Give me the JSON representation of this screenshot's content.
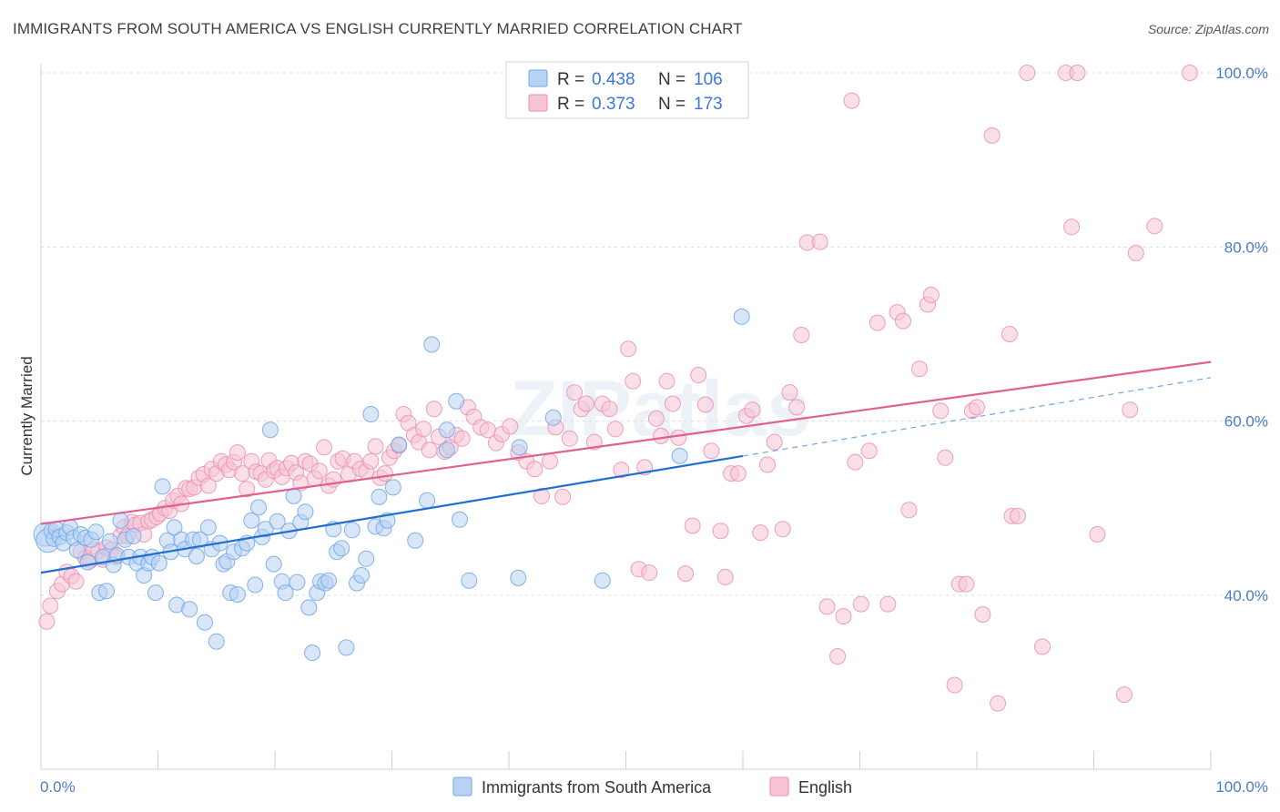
{
  "title": "IMMIGRANTS FROM SOUTH AMERICA VS ENGLISH CURRENTLY MARRIED CORRELATION CHART",
  "source": "Source: ZipAtlas.com",
  "watermark": "ZIPatlas",
  "colors": {
    "blue": "#6fa6e6",
    "blue_fill": "#b8d2f3",
    "blue_line": "#1f6fd0",
    "pink": "#ea8fb0",
    "pink_fill": "#f6c4d5",
    "pink_line": "#e0608e",
    "tick": "#4a7cc9"
  },
  "legend": {
    "rows": [
      {
        "r_label": "R = ",
        "r_value": "0.438",
        "n_label": "N = ",
        "n_value": "106"
      },
      {
        "r_label": "R = ",
        "r_value": "0.373",
        "n_label": "N = ",
        "n_value": "173"
      }
    ]
  },
  "chart_data": {
    "type": "scatter",
    "title": "IMMIGRANTS FROM SOUTH AMERICA VS ENGLISH CURRENTLY MARRIED CORRELATION CHART",
    "xlabel": "",
    "ylabel": "Currently Married",
    "xlim": [
      0,
      100
    ],
    "ylim": [
      20,
      102
    ],
    "x_tick_labels": [
      "0.0%",
      "100.0%"
    ],
    "y_ticks": [
      40,
      60,
      80,
      100
    ],
    "y_tick_labels": [
      "40.0%",
      "60.0%",
      "80.0%",
      "100.0%"
    ],
    "grid": true,
    "legend_position": "top-center",
    "series": [
      {
        "name": "Immigrants from South America",
        "r": 0.438,
        "n": 106,
        "trend": {
          "x0": 0,
          "y0": 42.6,
          "x1": 60,
          "y1": 56.0,
          "dash_to_x": 100,
          "dash_to_y": 65.0
        },
        "points": [
          [
            0.4,
            47
          ],
          [
            0.6,
            46.3
          ],
          [
            0.9,
            47.4
          ],
          [
            1.1,
            46.5
          ],
          [
            1.3,
            47.6
          ],
          [
            1.6,
            46.7
          ],
          [
            1.9,
            46.0
          ],
          [
            2.2,
            47.2
          ],
          [
            2.5,
            47.8
          ],
          [
            2.8,
            46.6
          ],
          [
            3.1,
            45.2
          ],
          [
            3.4,
            47.0
          ],
          [
            3.8,
            46.6
          ],
          [
            4.0,
            43.8
          ],
          [
            4.3,
            46.4
          ],
          [
            4.7,
            47.3
          ],
          [
            5.0,
            40.3
          ],
          [
            5.3,
            44.4
          ],
          [
            5.6,
            40.5
          ],
          [
            5.9,
            46.2
          ],
          [
            6.2,
            43.5
          ],
          [
            6.5,
            44.6
          ],
          [
            6.8,
            48.6
          ],
          [
            7.2,
            46.4
          ],
          [
            7.5,
            44.4
          ],
          [
            7.9,
            46.8
          ],
          [
            8.2,
            43.7
          ],
          [
            8.5,
            44.4
          ],
          [
            8.8,
            42.3
          ],
          [
            9.2,
            43.7
          ],
          [
            9.5,
            44.4
          ],
          [
            9.8,
            40.3
          ],
          [
            10.1,
            43.7
          ],
          [
            10.4,
            52.5
          ],
          [
            10.8,
            46.3
          ],
          [
            11.1,
            45.0
          ],
          [
            11.4,
            47.8
          ],
          [
            11.6,
            38.9
          ],
          [
            12.0,
            46.4
          ],
          [
            12.3,
            45.3
          ],
          [
            12.7,
            38.4
          ],
          [
            13.0,
            46.4
          ],
          [
            13.3,
            44.5
          ],
          [
            13.6,
            46.4
          ],
          [
            14.0,
            36.9
          ],
          [
            14.3,
            47.8
          ],
          [
            14.6,
            45.3
          ],
          [
            15.0,
            34.7
          ],
          [
            15.3,
            46.0
          ],
          [
            15.6,
            43.6
          ],
          [
            15.9,
            43.9
          ],
          [
            16.2,
            40.3
          ],
          [
            16.5,
            45.0
          ],
          [
            16.8,
            40.1
          ],
          [
            17.2,
            45.4
          ],
          [
            17.6,
            46.0
          ],
          [
            18.0,
            48.6
          ],
          [
            18.3,
            41.2
          ],
          [
            18.6,
            50.1
          ],
          [
            18.9,
            46.7
          ],
          [
            19.2,
            47.6
          ],
          [
            19.6,
            59.0
          ],
          [
            19.9,
            43.6
          ],
          [
            20.2,
            48.5
          ],
          [
            20.6,
            41.6
          ],
          [
            20.9,
            40.3
          ],
          [
            21.2,
            47.4
          ],
          [
            21.6,
            51.4
          ],
          [
            21.9,
            41.5
          ],
          [
            22.2,
            48.4
          ],
          [
            22.6,
            49.6
          ],
          [
            22.9,
            38.6
          ],
          [
            23.2,
            33.4
          ],
          [
            23.6,
            40.3
          ],
          [
            23.9,
            41.6
          ],
          [
            24.3,
            41.4
          ],
          [
            24.6,
            41.7
          ],
          [
            25.0,
            47.6
          ],
          [
            25.3,
            45.0
          ],
          [
            25.7,
            45.4
          ],
          [
            26.1,
            34.0
          ],
          [
            26.6,
            47.5
          ],
          [
            27.0,
            41.4
          ],
          [
            27.4,
            42.3
          ],
          [
            27.8,
            44.2
          ],
          [
            28.2,
            60.8
          ],
          [
            28.6,
            47.9
          ],
          [
            28.9,
            51.3
          ],
          [
            29.3,
            47.7
          ],
          [
            29.6,
            48.6
          ],
          [
            30.1,
            52.4
          ],
          [
            30.6,
            57.3
          ],
          [
            32.0,
            46.3
          ],
          [
            33.0,
            50.9
          ],
          [
            34.7,
            56.7
          ],
          [
            34.7,
            59.0
          ],
          [
            33.4,
            68.8
          ],
          [
            35.5,
            62.3
          ],
          [
            35.8,
            48.7
          ],
          [
            36.6,
            41.7
          ],
          [
            40.8,
            42.0
          ],
          [
            40.9,
            57.0
          ],
          [
            43.8,
            60.4
          ],
          [
            48.0,
            41.7
          ],
          [
            54.6,
            56.0
          ],
          [
            59.9,
            72.0
          ]
        ]
      },
      {
        "name": "English",
        "r": 0.373,
        "n": 173,
        "trend": {
          "x0": 0,
          "y0": 48.2,
          "x1": 100,
          "y1": 66.8
        },
        "points": [
          [
            0.5,
            37.0
          ],
          [
            0.8,
            38.8
          ],
          [
            1.4,
            40.5
          ],
          [
            1.8,
            41.3
          ],
          [
            2.2,
            42.7
          ],
          [
            2.6,
            42.2
          ],
          [
            3.0,
            41.6
          ],
          [
            3.4,
            45.0
          ],
          [
            3.8,
            44.3
          ],
          [
            4.2,
            44.0
          ],
          [
            4.5,
            45.3
          ],
          [
            4.9,
            45.1
          ],
          [
            5.3,
            44.1
          ],
          [
            5.6,
            45.5
          ],
          [
            6.0,
            45.2
          ],
          [
            6.4,
            44.4
          ],
          [
            6.8,
            46.8
          ],
          [
            7.1,
            47.8
          ],
          [
            7.4,
            46.8
          ],
          [
            7.8,
            48.4
          ],
          [
            8.1,
            48.1
          ],
          [
            8.5,
            48.3
          ],
          [
            8.8,
            47.0
          ],
          [
            9.2,
            48.5
          ],
          [
            9.5,
            48.7
          ],
          [
            9.9,
            49.0
          ],
          [
            10.2,
            49.4
          ],
          [
            10.6,
            50.0
          ],
          [
            11.0,
            49.7
          ],
          [
            11.3,
            50.9
          ],
          [
            11.7,
            51.4
          ],
          [
            12.0,
            50.5
          ],
          [
            12.4,
            52.3
          ],
          [
            12.7,
            52.2
          ],
          [
            13.1,
            52.4
          ],
          [
            13.5,
            53.5
          ],
          [
            13.9,
            53.9
          ],
          [
            14.3,
            52.6
          ],
          [
            14.6,
            54.5
          ],
          [
            15.0,
            54.0
          ],
          [
            15.4,
            55.4
          ],
          [
            15.8,
            55.0
          ],
          [
            16.1,
            54.4
          ],
          [
            16.5,
            55.3
          ],
          [
            16.8,
            56.4
          ],
          [
            17.2,
            54.0
          ],
          [
            17.6,
            52.2
          ],
          [
            18.0,
            55.4
          ],
          [
            18.4,
            54.2
          ],
          [
            18.8,
            54.0
          ],
          [
            19.2,
            53.3
          ],
          [
            19.5,
            55.5
          ],
          [
            19.9,
            54.3
          ],
          [
            20.2,
            54.6
          ],
          [
            20.6,
            53.6
          ],
          [
            21.0,
            54.6
          ],
          [
            21.4,
            55.2
          ],
          [
            21.8,
            54.1
          ],
          [
            22.2,
            52.9
          ],
          [
            22.6,
            55.4
          ],
          [
            23.0,
            55.1
          ],
          [
            23.4,
            53.4
          ],
          [
            23.8,
            54.3
          ],
          [
            24.2,
            57.0
          ],
          [
            24.6,
            52.6
          ],
          [
            25.0,
            53.3
          ],
          [
            25.4,
            55.4
          ],
          [
            25.8,
            55.7
          ],
          [
            26.3,
            53.9
          ],
          [
            26.8,
            55.4
          ],
          [
            27.3,
            54.5
          ],
          [
            27.8,
            54.2
          ],
          [
            28.2,
            55.4
          ],
          [
            28.6,
            57.1
          ],
          [
            29.0,
            53.5
          ],
          [
            29.4,
            54.0
          ],
          [
            29.8,
            55.8
          ],
          [
            30.2,
            56.6
          ],
          [
            30.6,
            57.2
          ],
          [
            31.0,
            60.8
          ],
          [
            31.4,
            59.8
          ],
          [
            31.9,
            58.4
          ],
          [
            32.3,
            57.6
          ],
          [
            32.7,
            59.1
          ],
          [
            33.2,
            56.7
          ],
          [
            33.6,
            61.4
          ],
          [
            34.0,
            58.2
          ],
          [
            34.5,
            56.5
          ],
          [
            35.0,
            57.0
          ],
          [
            35.5,
            58.4
          ],
          [
            36.0,
            58.0
          ],
          [
            36.5,
            61.6
          ],
          [
            37.0,
            60.5
          ],
          [
            37.6,
            59.3
          ],
          [
            38.2,
            59.0
          ],
          [
            38.9,
            57.5
          ],
          [
            39.4,
            58.5
          ],
          [
            40.1,
            59.4
          ],
          [
            40.8,
            56.4
          ],
          [
            41.5,
            55.4
          ],
          [
            42.2,
            54.5
          ],
          [
            42.8,
            51.4
          ],
          [
            43.5,
            55.4
          ],
          [
            44.0,
            59.3
          ],
          [
            44.6,
            51.3
          ],
          [
            45.2,
            58.0
          ],
          [
            45.6,
            63.3
          ],
          [
            46.2,
            61.4
          ],
          [
            46.6,
            62.0
          ],
          [
            47.3,
            57.6
          ],
          [
            48.0,
            62.0
          ],
          [
            48.6,
            61.4
          ],
          [
            49.1,
            59.1
          ],
          [
            49.6,
            54.4
          ],
          [
            50.2,
            68.3
          ],
          [
            50.6,
            64.6
          ],
          [
            51.1,
            43.0
          ],
          [
            51.6,
            54.7
          ],
          [
            52.0,
            42.6
          ],
          [
            52.6,
            60.3
          ],
          [
            53.0,
            58.3
          ],
          [
            53.5,
            64.6
          ],
          [
            54.0,
            62.0
          ],
          [
            54.5,
            58.1
          ],
          [
            55.1,
            42.5
          ],
          [
            55.7,
            48.0
          ],
          [
            56.2,
            65.3
          ],
          [
            56.8,
            61.9
          ],
          [
            57.3,
            56.6
          ],
          [
            58.1,
            47.4
          ],
          [
            58.5,
            42.1
          ],
          [
            59.0,
            54.0
          ],
          [
            59.6,
            54.0
          ],
          [
            60.3,
            60.6
          ],
          [
            60.8,
            61.3
          ],
          [
            61.5,
            47.2
          ],
          [
            62.1,
            55.0
          ],
          [
            62.7,
            57.6
          ],
          [
            63.4,
            47.6
          ],
          [
            64.0,
            63.3
          ],
          [
            64.6,
            61.6
          ],
          [
            65.0,
            69.9
          ],
          [
            65.5,
            80.5
          ],
          [
            66.6,
            80.6
          ],
          [
            67.2,
            38.7
          ],
          [
            68.1,
            33.0
          ],
          [
            68.6,
            37.6
          ],
          [
            69.3,
            96.8
          ],
          [
            69.6,
            55.3
          ],
          [
            70.1,
            39.0
          ],
          [
            70.8,
            56.6
          ],
          [
            71.5,
            71.3
          ],
          [
            72.4,
            39.0
          ],
          [
            73.2,
            72.5
          ],
          [
            73.7,
            71.5
          ],
          [
            74.2,
            49.8
          ],
          [
            75.1,
            66.0
          ],
          [
            75.8,
            73.4
          ],
          [
            76.1,
            74.5
          ],
          [
            76.9,
            61.2
          ],
          [
            77.3,
            55.8
          ],
          [
            78.1,
            29.7
          ],
          [
            78.5,
            41.3
          ],
          [
            79.1,
            41.3
          ],
          [
            79.6,
            61.2
          ],
          [
            80.0,
            61.6
          ],
          [
            80.5,
            37.8
          ],
          [
            81.3,
            92.8
          ],
          [
            81.8,
            27.6
          ],
          [
            82.8,
            70.0
          ],
          [
            83.0,
            49.1
          ],
          [
            83.5,
            49.1
          ],
          [
            84.3,
            100.0
          ],
          [
            85.6,
            34.1
          ],
          [
            87.6,
            100.0
          ],
          [
            88.1,
            82.3
          ],
          [
            88.6,
            100.0
          ],
          [
            90.3,
            47.0
          ],
          [
            92.6,
            28.6
          ],
          [
            93.1,
            61.3
          ],
          [
            93.6,
            79.3
          ],
          [
            95.2,
            82.4
          ],
          [
            98.2,
            100.0
          ]
        ]
      }
    ]
  }
}
